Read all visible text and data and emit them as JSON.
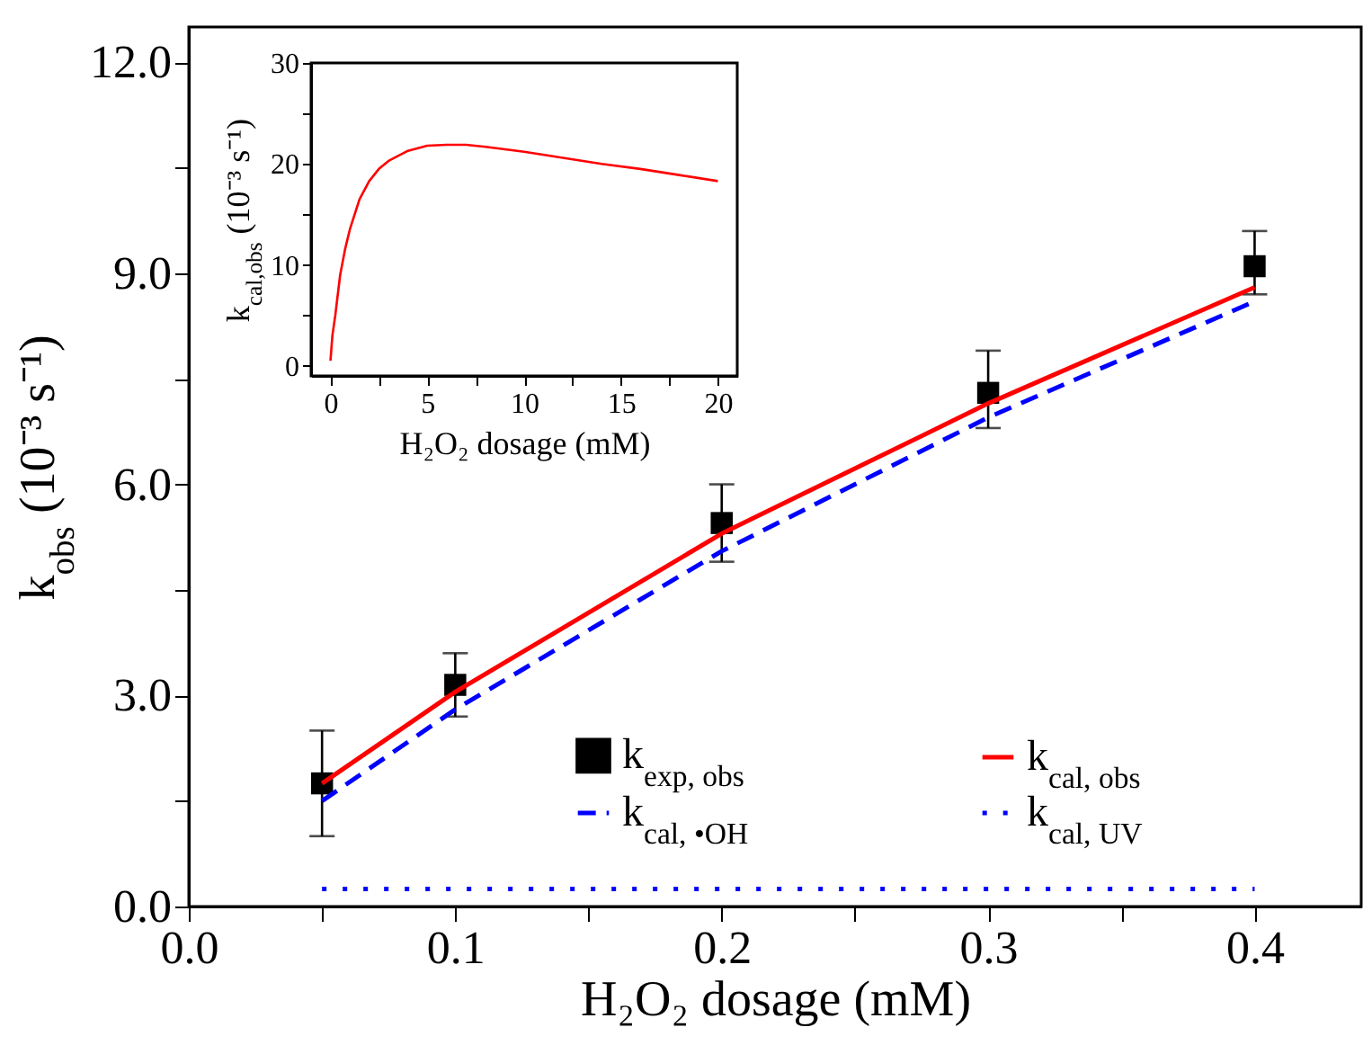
{
  "chart_data": [
    {
      "type": "line",
      "xlabel": "H₂O₂ dosage (mM)",
      "ylabel": "k$_{obs}$ (10⁻³ s⁻¹)",
      "xlim": [
        0,
        0.44
      ],
      "ylim": [
        0,
        12.5
      ],
      "xticks": [
        {
          "value": 0,
          "label": "0.0"
        },
        {
          "value": 0.05,
          "label": null
        },
        {
          "value": 0.1,
          "label": "0.1"
        },
        {
          "value": 0.15,
          "label": null
        },
        {
          "value": 0.2,
          "label": "0.2"
        },
        {
          "value": 0.25,
          "label": null
        },
        {
          "value": 0.3,
          "label": "0.3"
        },
        {
          "value": 0.35,
          "label": null
        },
        {
          "value": 0.4,
          "label": "0.4"
        }
      ],
      "yticks": [
        {
          "value": 0,
          "label": "0.0"
        },
        {
          "value": 1.5,
          "label": null
        },
        {
          "value": 3,
          "label": "3.0"
        },
        {
          "value": 4.5,
          "label": null
        },
        {
          "value": 6,
          "label": "6.0"
        },
        {
          "value": 7.5,
          "label": null
        },
        {
          "value": 9,
          "label": "9.0"
        },
        {
          "value": 10.5,
          "label": null
        },
        {
          "value": 12,
          "label": "12.0"
        }
      ],
      "x": [
        0.05,
        0.1,
        0.2,
        0.3,
        0.4
      ],
      "legend": "bottom right",
      "series": [
        {
          "name": "k$_{exp, obs}$",
          "type": "scatter",
          "marker": "square",
          "color": "#000000",
          "values": [
            1.75,
            3.15,
            5.45,
            7.3,
            9.1
          ],
          "errors": [
            [
              1.0,
              2.5
            ],
            [
              2.7,
              3.6
            ],
            [
              4.9,
              6.0
            ],
            [
              6.8,
              7.9
            ],
            [
              8.7,
              9.6
            ]
          ]
        },
        {
          "name": "k$_{cal, obs}$",
          "type": "line",
          "marker": "none",
          "line_style": "solid",
          "color": "#ff0000",
          "values": [
            1.75,
            3.05,
            5.3,
            7.15,
            8.8
          ]
        },
        {
          "name": "k$_{cal, •OH}$",
          "type": "line",
          "marker": "none",
          "line_style": "dashed",
          "color": "#0000ff",
          "values": [
            1.5,
            2.8,
            5.05,
            6.95,
            8.6
          ]
        },
        {
          "name": "k$_{cal, UV}$",
          "type": "line",
          "marker": "none",
          "line_style": "dotted",
          "color": "#0000ff",
          "values": [
            0.25,
            0.25,
            0.25,
            0.25,
            0.25
          ]
        }
      ]
    },
    {
      "type": "line",
      "xlabel": "H₂O₂ dosage (mM)",
      "ylabel": "k$_{cal,obs}$ (10⁻³ s⁻¹)",
      "xlim": [
        -1,
        21
      ],
      "ylim": [
        -1,
        30
      ],
      "xticks": [
        0,
        {
          "value": 2.5,
          "label": null
        },
        5,
        {
          "value": 7.5,
          "label": null
        },
        10,
        {
          "value": 12.5,
          "label": null
        },
        15,
        {
          "value": 17.5,
          "label": null
        },
        20
      ],
      "yticks": [
        0,
        {
          "value": 5,
          "label": null
        },
        10,
        {
          "value": 15,
          "label": null
        },
        20,
        {
          "value": 25,
          "label": null
        },
        30
      ],
      "x": [
        0,
        0.1,
        0.25,
        0.5,
        0.75,
        1,
        1.5,
        2,
        2.5,
        3,
        4,
        5,
        6,
        7,
        8,
        10,
        12,
        14,
        16,
        18,
        20
      ],
      "series": [
        {
          "type": "line",
          "marker": "none",
          "line_style": "solid",
          "color": "#ff0000",
          "values": [
            0.5,
            3,
            5,
            9,
            11.5,
            13.5,
            16.5,
            18.3,
            19.5,
            20.3,
            21.3,
            21.8,
            21.9,
            21.9,
            21.7,
            21.2,
            20.6,
            20.0,
            19.5,
            18.9,
            18.3
          ]
        }
      ]
    }
  ]
}
